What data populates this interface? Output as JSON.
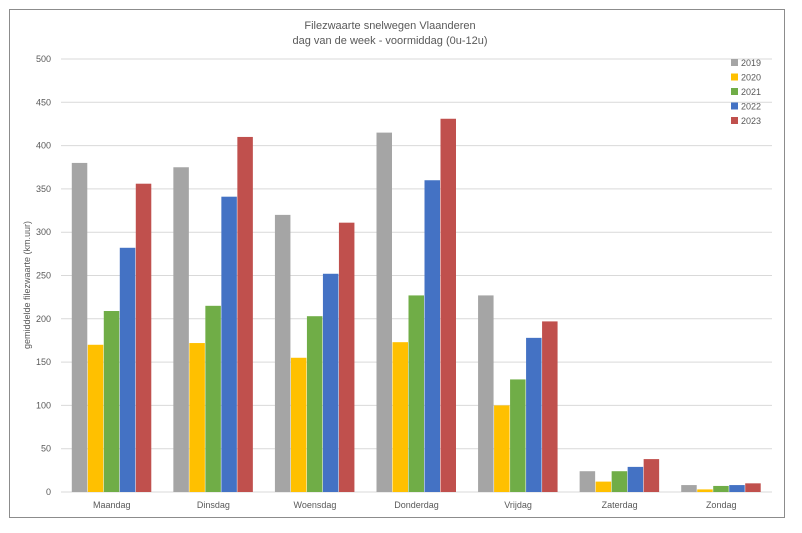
{
  "chart_data": {
    "type": "bar",
    "title": "Filezwaarte snelwegen Vlaanderen",
    "subtitle": "dag van de week - voormiddag (0u-12u)",
    "xlabel": "",
    "ylabel": "gemiddelde filezwaarte (km.uur)",
    "ylim": [
      0,
      500
    ],
    "yticks": [
      0,
      50,
      100,
      150,
      200,
      250,
      300,
      350,
      400,
      450,
      500
    ],
    "grid": true,
    "legend_position": "top-right",
    "categories": [
      "Maandag",
      "Dinsdag",
      "Woensdag",
      "Donderdag",
      "Vrijdag",
      "Zaterdag",
      "Zondag"
    ],
    "series": [
      {
        "name": "2019",
        "color": "#a5a5a5",
        "values": [
          380,
          375,
          320,
          415,
          227,
          24,
          8
        ]
      },
      {
        "name": "2020",
        "color": "#ffc000",
        "values": [
          170,
          172,
          155,
          173,
          100,
          12,
          3
        ]
      },
      {
        "name": "2021",
        "color": "#70ad47",
        "values": [
          209,
          215,
          203,
          227,
          130,
          24,
          7
        ]
      },
      {
        "name": "2022",
        "color": "#4472c4",
        "values": [
          282,
          341,
          252,
          360,
          178,
          29,
          8
        ]
      },
      {
        "name": "2023",
        "color": "#c0504d",
        "values": [
          356,
          410,
          311,
          431,
          197,
          38,
          10
        ]
      }
    ]
  }
}
